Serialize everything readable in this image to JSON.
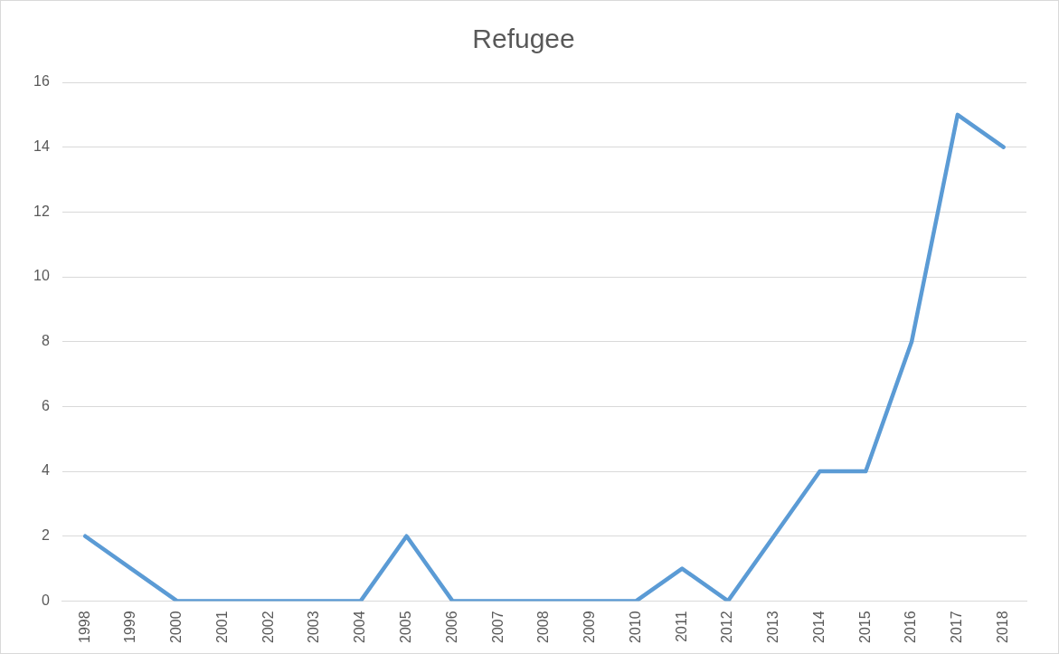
{
  "chart_data": {
    "type": "line",
    "title": "Refugee",
    "categories": [
      "1998",
      "1999",
      "2000",
      "2001",
      "2002",
      "2003",
      "2004",
      "2005",
      "2006",
      "2007",
      "2008",
      "2009",
      "2010",
      "2011",
      "2012",
      "2013",
      "2014",
      "2015",
      "2016",
      "2017",
      "2018"
    ],
    "series": [
      {
        "color": "#5b9bd5",
        "values": [
          2,
          1,
          0,
          0,
          0,
          0,
          0,
          2,
          0,
          0,
          0,
          0,
          0,
          1,
          0,
          2,
          4,
          4,
          8,
          15,
          14
        ]
      }
    ],
    "ylim": [
      0,
      16
    ],
    "yticks": [
      0,
      2,
      4,
      6,
      8,
      10,
      12,
      14,
      16
    ],
    "grid": "y",
    "legend": false,
    "marker": "none",
    "line_style": "solid"
  }
}
